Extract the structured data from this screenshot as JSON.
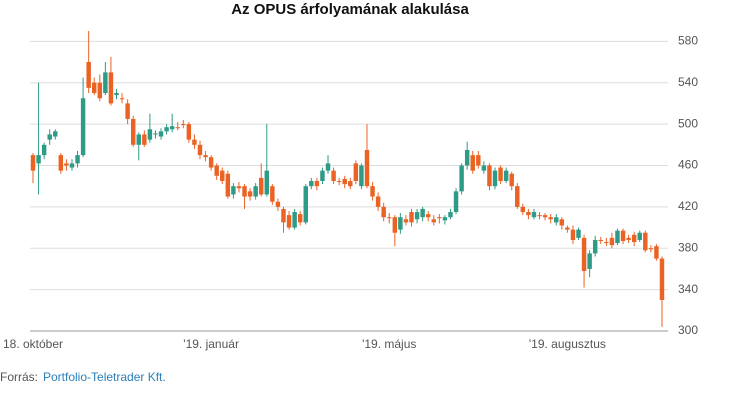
{
  "chart_data": {
    "type": "candlestick",
    "title": "Az OPUS árfolyamának alakulása",
    "categories": [
      "18. október",
      null,
      null,
      null,
      null,
      null,
      null,
      null,
      null,
      null,
      null,
      null,
      null,
      null,
      null,
      null,
      null,
      null,
      null,
      null,
      null,
      null,
      null,
      null,
      null,
      null,
      null,
      null,
      null,
      null,
      null,
      null,
      "'19. január",
      null,
      null,
      null,
      null,
      null,
      null,
      null,
      null,
      null,
      null,
      null,
      null,
      null,
      null,
      null,
      null,
      null,
      null,
      null,
      null,
      null,
      null,
      null,
      null,
      null,
      null,
      null,
      null,
      null,
      null,
      null,
      "'19. május",
      null,
      null,
      null,
      null,
      null,
      null,
      null,
      null,
      null,
      null,
      null,
      null,
      null,
      null,
      null,
      null,
      null,
      null,
      null,
      null,
      null,
      null,
      null,
      null,
      null,
      null,
      null,
      null,
      null,
      null,
      null,
      "'19. augusztus",
      null,
      null,
      null,
      null,
      null,
      null,
      null,
      null,
      null,
      null,
      null,
      null,
      null,
      null,
      null,
      null,
      null
    ],
    "open": [
      470,
      462,
      470,
      485,
      488,
      470,
      462,
      458,
      462,
      470,
      560,
      540,
      540,
      530,
      550,
      528,
      525,
      520,
      505,
      480,
      490,
      485,
      490,
      488,
      493,
      495,
      497,
      500,
      500,
      485,
      480,
      470,
      468,
      460,
      455,
      452,
      432,
      440,
      440,
      435,
      430,
      448,
      432,
      440,
      425,
      418,
      412,
      400,
      413,
      405,
      440,
      445,
      445,
      455,
      455,
      445,
      447,
      445,
      462,
      440,
      475,
      440,
      430,
      420,
      410,
      410,
      398,
      408,
      415,
      408,
      410,
      413,
      408,
      410,
      407,
      410,
      415,
      435,
      460,
      470,
      470,
      455,
      460,
      440,
      458,
      445,
      452,
      440,
      420,
      415,
      410,
      412,
      412,
      410,
      405,
      408,
      400,
      398,
      390,
      390,
      360,
      375,
      388,
      386,
      390,
      385,
      397,
      390,
      393,
      388,
      395,
      380,
      382,
      370
    ],
    "high": [
      472,
      540,
      482,
      495,
      495,
      472,
      466,
      466,
      474,
      545,
      590,
      545,
      548,
      560,
      565,
      534,
      530,
      524,
      508,
      492,
      494,
      510,
      494,
      496,
      500,
      510,
      502,
      504,
      502,
      490,
      484,
      474,
      470,
      462,
      458,
      455,
      443,
      444,
      442,
      438,
      443,
      462,
      500,
      442,
      428,
      420,
      416,
      418,
      416,
      442,
      448,
      448,
      458,
      470,
      458,
      448,
      450,
      448,
      465,
      462,
      500,
      444,
      434,
      424,
      414,
      412,
      414,
      412,
      418,
      418,
      420,
      416,
      412,
      413,
      412,
      418,
      438,
      462,
      483,
      474,
      474,
      464,
      462,
      458,
      460,
      458,
      454,
      443,
      423,
      418,
      418,
      415,
      414,
      413,
      413,
      410,
      402,
      402,
      400,
      393,
      378,
      392,
      391,
      390,
      395,
      399,
      399,
      393,
      396,
      397,
      397,
      383,
      384,
      372
    ],
    "low": [
      443,
      432,
      466,
      480,
      485,
      452,
      455,
      455,
      458,
      468,
      530,
      528,
      522,
      528,
      518,
      524,
      520,
      500,
      478,
      465,
      478,
      482,
      486,
      485,
      490,
      492,
      494,
      496,
      482,
      476,
      466,
      464,
      455,
      446,
      442,
      428,
      428,
      434,
      418,
      426,
      427,
      430,
      430,
      422,
      416,
      395,
      398,
      398,
      402,
      403,
      437,
      436,
      442,
      452,
      442,
      441,
      438,
      437,
      442,
      437,
      438,
      426,
      416,
      406,
      404,
      382,
      394,
      402,
      401,
      404,
      406,
      406,
      402,
      404,
      403,
      408,
      413,
      432,
      456,
      452,
      457,
      452,
      436,
      437,
      442,
      443,
      436,
      418,
      412,
      408,
      408,
      408,
      407,
      404,
      402,
      398,
      395,
      384,
      388,
      342,
      352,
      372,
      384,
      382,
      380,
      383,
      384,
      385,
      382,
      386,
      376,
      376,
      368,
      304
    ],
    "close": [
      455,
      470,
      480,
      490,
      493,
      455,
      460,
      462,
      470,
      525,
      535,
      530,
      525,
      550,
      520,
      530,
      524,
      505,
      480,
      490,
      480,
      495,
      491,
      493,
      497,
      498,
      496,
      499,
      485,
      480,
      470,
      468,
      458,
      450,
      445,
      430,
      440,
      438,
      430,
      430,
      440,
      432,
      455,
      425,
      420,
      405,
      400,
      415,
      405,
      440,
      445,
      440,
      455,
      462,
      445,
      444,
      442,
      440,
      445,
      460,
      440,
      430,
      420,
      410,
      409,
      395,
      410,
      405,
      405,
      415,
      418,
      410,
      405,
      409,
      410,
      415,
      435,
      460,
      475,
      455,
      460,
      460,
      440,
      455,
      445,
      455,
      440,
      420,
      415,
      412,
      415,
      411,
      410,
      408,
      410,
      402,
      398,
      388,
      398,
      358,
      375,
      388,
      387,
      385,
      383,
      397,
      387,
      388,
      386,
      395,
      378,
      379,
      370,
      330
    ],
    "up_color": "#2e9b86",
    "down_color": "#ea6325",
    "ylim": [
      300,
      590
    ],
    "yticks": [
      300,
      340,
      380,
      420,
      460,
      500,
      540,
      580
    ],
    "grid": true,
    "source_label": "Forrás:",
    "source": "Portfolio-Teletrader Kft."
  }
}
